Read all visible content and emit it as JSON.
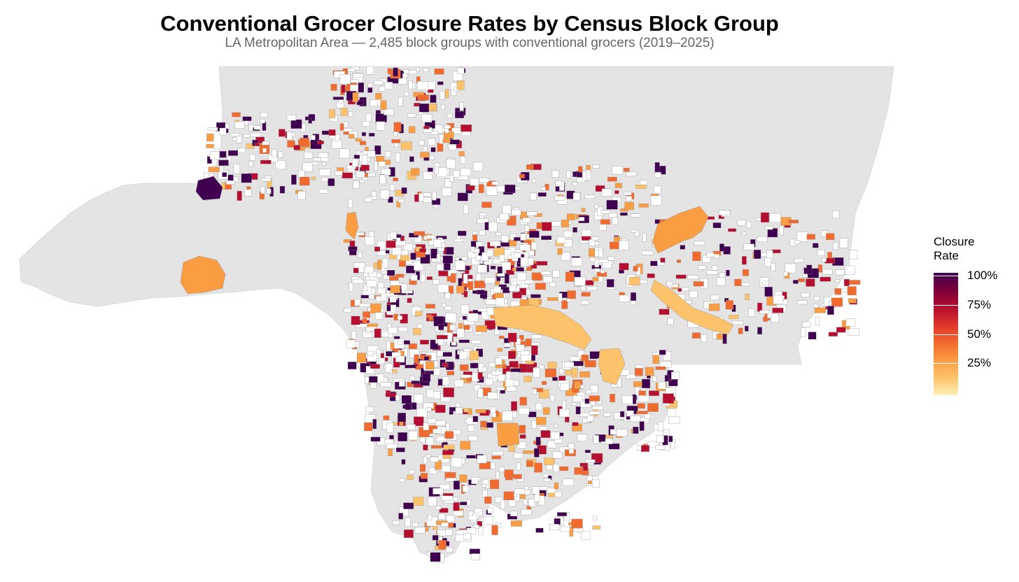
{
  "title": "Conventional Grocer Closure Rates by Census Block Group",
  "subtitle": "LA Metropolitan Area — 2,485 block groups with conventional grocers (2019–2025)",
  "legend": {
    "title": "Closure Rate",
    "stops": [
      {
        "value": 1.0,
        "label": "100%"
      },
      {
        "value": 0.75,
        "label": "75%"
      },
      {
        "value": 0.5,
        "label": "50%"
      },
      {
        "value": 0.25,
        "label": "25%"
      }
    ],
    "colors": [
      "#fff3b8",
      "#fdc26a",
      "#fb9d43",
      "#f26a2d",
      "#e0362a",
      "#b50e30",
      "#7c0039",
      "#3f0050"
    ]
  },
  "colors": {
    "land": "#e4e4e4",
    "no_data_block": "#ffffff",
    "block_outline": "#8c8c8c"
  }
}
